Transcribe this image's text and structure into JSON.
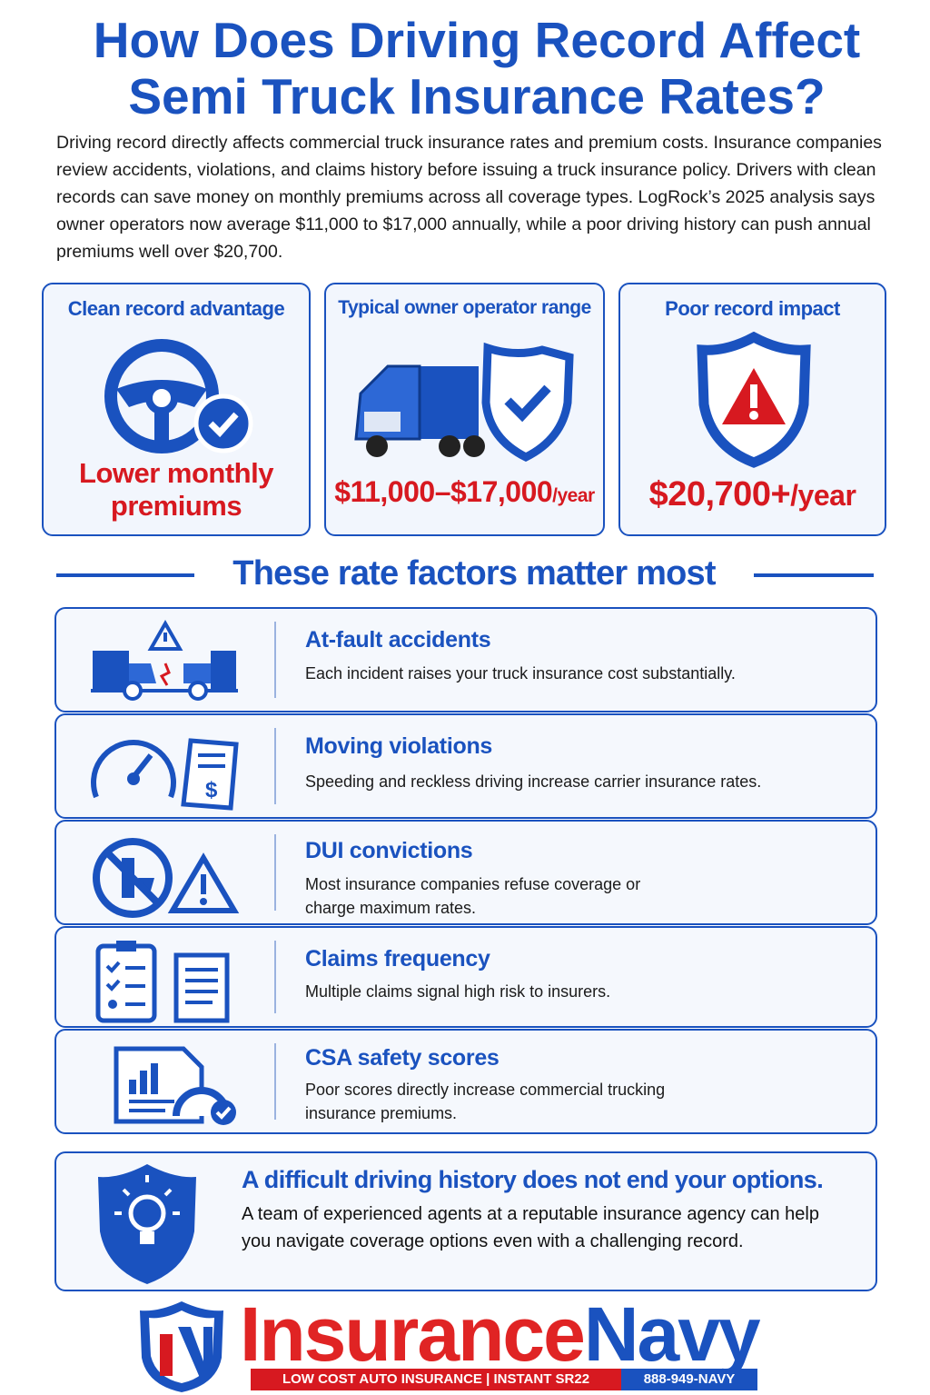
{
  "header": {
    "title_lines": [
      "How Does Driving Record Affect",
      "Semi Truck Insurance Rates?"
    ],
    "intro": "Driving record directly affects commercial truck insurance rates and premium costs. Insurance companies review accidents, violations, and claims history before issuing a truck insurance policy. Drivers with clean records can save money on monthly premiums across all coverage types. LogRock’s 2025 analysis says owner operators now average $11,000 to $17,000 annually, while a poor driving history can push annual premiums well over $20,700."
  },
  "cards": [
    {
      "label": "Clean record advantage",
      "value_lines": [
        "Lower monthly",
        "premiums"
      ]
    },
    {
      "label": "Typical owner operator range",
      "amount": "$11,000–$17,000",
      "unit": "/year"
    },
    {
      "label": "Poor record impact",
      "amount": "$20,700+",
      "unit": "/year"
    }
  ],
  "factors": {
    "heading": "These rate factors matter most",
    "items": [
      {
        "title": "At-fault accidents",
        "text": "Each incident raises your truck insurance cost substantially."
      },
      {
        "title": "Moving violations",
        "text": "Speeding and reckless driving increase carrier insurance rates."
      },
      {
        "title": "DUI convictions",
        "text": "Most insurance companies refuse coverage or charge maximum rates."
      },
      {
        "title": "Claims frequency",
        "text": "Multiple claims signal high risk to insurers."
      },
      {
        "title": "CSA safety scores",
        "text": "Poor scores directly increase commercial trucking insurance premiums."
      }
    ]
  },
  "callout": {
    "title": "A difficult driving history does not end your options.",
    "text": "A team of experienced agents at a reputable insurance agency can help you navigate coverage options even with a challenging record."
  },
  "footer": {
    "brand_first": "Insurance",
    "brand_second": "Navy",
    "tagline_left": "LOW COST AUTO INSURANCE",
    "tagline_right": "INSTANT SR22",
    "phone": "888-949-NAVY"
  }
}
